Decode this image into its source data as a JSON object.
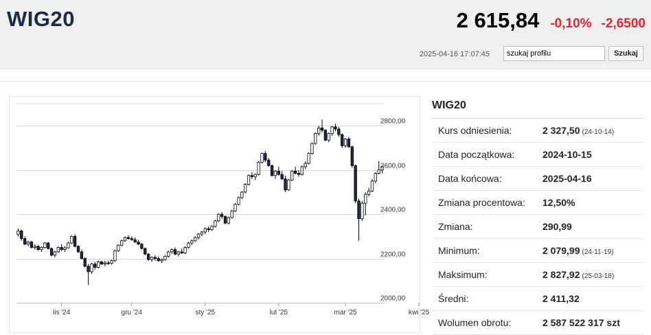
{
  "header": {
    "ticker": "WIG20",
    "price": "2 615,84",
    "change_pct": "-0,10%",
    "change_abs": "-2,6500",
    "timestamp": "2025-04-16 17:07:45",
    "search_value": "szukaj profilu",
    "search_button": "Szukaj"
  },
  "info": {
    "title": "WIG20",
    "rows": [
      {
        "label": "Kurs odniesienia:",
        "value": "2 327,50",
        "date": "(24-10-14)"
      },
      {
        "label": "Data początkowa:",
        "value": "2024-10-15",
        "date": ""
      },
      {
        "label": "Data końcowa:",
        "value": "2025-04-16",
        "date": ""
      },
      {
        "label": "Zmiana procentowa:",
        "value": "12,50%",
        "date": ""
      },
      {
        "label": "Zmiana:",
        "value": "290,99",
        "date": ""
      },
      {
        "label": "Minimum:",
        "value": "2 079,99",
        "date": "(24-11-19)"
      },
      {
        "label": "Maksimum:",
        "value": "2 827,92",
        "date": "(25-03-18)"
      },
      {
        "label": "Średni:",
        "value": "2 411,32",
        "date": ""
      },
      {
        "label": "Wolumen obrotu:",
        "value": "2 587 522 317 szt",
        "date": ""
      }
    ]
  },
  "chart_data": {
    "type": "candlestick",
    "y_ticks": [
      "2800,00",
      "2600,00",
      "2400,00",
      "2200,00",
      "2000,00"
    ],
    "y_tick_values": [
      2800,
      2600,
      2400,
      2200,
      2000
    ],
    "ylim": [
      2000,
      2900
    ],
    "x_labels": [
      "lis '24",
      "gru '24",
      "sty '25",
      "lut '25",
      "mar '25",
      "kwi '25"
    ],
    "x_label_index": [
      13,
      34,
      56,
      78,
      98,
      120
    ],
    "grid": true,
    "candles": [
      [
        2310,
        2335,
        2300,
        2325
      ],
      [
        2325,
        2330,
        2280,
        2290
      ],
      [
        2290,
        2300,
        2260,
        2265
      ],
      [
        2265,
        2280,
        2255,
        2275
      ],
      [
        2275,
        2280,
        2245,
        2250
      ],
      [
        2250,
        2265,
        2240,
        2255
      ],
      [
        2255,
        2260,
        2235,
        2240
      ],
      [
        2240,
        2255,
        2230,
        2250
      ],
      [
        2250,
        2275,
        2245,
        2270
      ],
      [
        2270,
        2275,
        2240,
        2245
      ],
      [
        2245,
        2250,
        2210,
        2215
      ],
      [
        2215,
        2235,
        2205,
        2230
      ],
      [
        2230,
        2255,
        2225,
        2250
      ],
      [
        2250,
        2265,
        2235,
        2240
      ],
      [
        2240,
        2255,
        2230,
        2248
      ],
      [
        2248,
        2275,
        2245,
        2270
      ],
      [
        2270,
        2305,
        2265,
        2300
      ],
      [
        2300,
        2310,
        2250,
        2255
      ],
      [
        2255,
        2260,
        2225,
        2230
      ],
      [
        2230,
        2240,
        2195,
        2200
      ],
      [
        2200,
        2205,
        2160,
        2165
      ],
      [
        2165,
        2175,
        2080,
        2140
      ],
      [
        2140,
        2180,
        2130,
        2175
      ],
      [
        2175,
        2185,
        2150,
        2160
      ],
      [
        2160,
        2190,
        2155,
        2185
      ],
      [
        2185,
        2190,
        2170,
        2175
      ],
      [
        2175,
        2190,
        2165,
        2180
      ],
      [
        2180,
        2190,
        2170,
        2178
      ],
      [
        2178,
        2195,
        2172,
        2190
      ],
      [
        2190,
        2240,
        2185,
        2235
      ],
      [
        2235,
        2265,
        2230,
        2260
      ],
      [
        2260,
        2285,
        2255,
        2280
      ],
      [
        2280,
        2300,
        2275,
        2295
      ],
      [
        2295,
        2305,
        2285,
        2290
      ],
      [
        2290,
        2300,
        2280,
        2285
      ],
      [
        2285,
        2295,
        2270,
        2275
      ],
      [
        2275,
        2285,
        2260,
        2265
      ],
      [
        2265,
        2270,
        2240,
        2245
      ],
      [
        2245,
        2250,
        2215,
        2220
      ],
      [
        2220,
        2225,
        2190,
        2195
      ],
      [
        2195,
        2210,
        2185,
        2205
      ],
      [
        2205,
        2215,
        2190,
        2200
      ],
      [
        2200,
        2210,
        2185,
        2190
      ],
      [
        2190,
        2200,
        2180,
        2195
      ],
      [
        2195,
        2215,
        2190,
        2210
      ],
      [
        2210,
        2235,
        2205,
        2230
      ],
      [
        2230,
        2245,
        2220,
        2240
      ],
      [
        2240,
        2250,
        2215,
        2220
      ],
      [
        2220,
        2235,
        2210,
        2230
      ],
      [
        2230,
        2245,
        2220,
        2225
      ],
      [
        2225,
        2255,
        2220,
        2250
      ],
      [
        2250,
        2275,
        2245,
        2270
      ],
      [
        2270,
        2285,
        2260,
        2280
      ],
      [
        2280,
        2300,
        2275,
        2295
      ],
      [
        2295,
        2315,
        2285,
        2310
      ],
      [
        2310,
        2325,
        2300,
        2320
      ],
      [
        2320,
        2340,
        2310,
        2335
      ],
      [
        2335,
        2345,
        2320,
        2330
      ],
      [
        2330,
        2350,
        2325,
        2345
      ],
      [
        2345,
        2375,
        2340,
        2370
      ],
      [
        2370,
        2405,
        2365,
        2400
      ],
      [
        2400,
        2410,
        2380,
        2390
      ],
      [
        2390,
        2395,
        2355,
        2360
      ],
      [
        2360,
        2390,
        2355,
        2385
      ],
      [
        2385,
        2420,
        2380,
        2415
      ],
      [
        2415,
        2450,
        2410,
        2445
      ],
      [
        2445,
        2480,
        2440,
        2475
      ],
      [
        2475,
        2505,
        2470,
        2500
      ],
      [
        2500,
        2540,
        2495,
        2535
      ],
      [
        2535,
        2580,
        2530,
        2575
      ],
      [
        2575,
        2590,
        2560,
        2570
      ],
      [
        2570,
        2585,
        2555,
        2580
      ],
      [
        2580,
        2640,
        2575,
        2635
      ],
      [
        2635,
        2680,
        2630,
        2675
      ],
      [
        2675,
        2685,
        2635,
        2645
      ],
      [
        2645,
        2655,
        2615,
        2620
      ],
      [
        2620,
        2625,
        2570,
        2575
      ],
      [
        2575,
        2600,
        2560,
        2595
      ],
      [
        2595,
        2615,
        2575,
        2580
      ],
      [
        2580,
        2595,
        2555,
        2560
      ],
      [
        2560,
        2575,
        2500,
        2510
      ],
      [
        2510,
        2560,
        2505,
        2555
      ],
      [
        2555,
        2600,
        2550,
        2595
      ],
      [
        2595,
        2615,
        2580,
        2585
      ],
      [
        2585,
        2600,
        2570,
        2580
      ],
      [
        2580,
        2620,
        2575,
        2615
      ],
      [
        2615,
        2640,
        2605,
        2630
      ],
      [
        2630,
        2680,
        2625,
        2675
      ],
      [
        2675,
        2725,
        2670,
        2720
      ],
      [
        2720,
        2770,
        2715,
        2765
      ],
      [
        2765,
        2800,
        2755,
        2790
      ],
      [
        2790,
        2828,
        2770,
        2780
      ],
      [
        2780,
        2785,
        2730,
        2735
      ],
      [
        2735,
        2770,
        2725,
        2765
      ],
      [
        2765,
        2800,
        2755,
        2795
      ],
      [
        2795,
        2810,
        2775,
        2785
      ],
      [
        2785,
        2795,
        2750,
        2760
      ],
      [
        2760,
        2765,
        2700,
        2710
      ],
      [
        2710,
        2745,
        2700,
        2740
      ],
      [
        2740,
        2750,
        2700,
        2705
      ],
      [
        2705,
        2710,
        2610,
        2620
      ],
      [
        2620,
        2625,
        2450,
        2460
      ],
      [
        2460,
        2470,
        2280,
        2380
      ],
      [
        2380,
        2460,
        2370,
        2450
      ],
      [
        2450,
        2500,
        2395,
        2490
      ],
      [
        2490,
        2520,
        2480,
        2505
      ],
      [
        2505,
        2560,
        2500,
        2550
      ],
      [
        2550,
        2590,
        2540,
        2585
      ],
      [
        2585,
        2640,
        2580,
        2600
      ],
      [
        2600,
        2620,
        2585,
        2616
      ]
    ]
  }
}
